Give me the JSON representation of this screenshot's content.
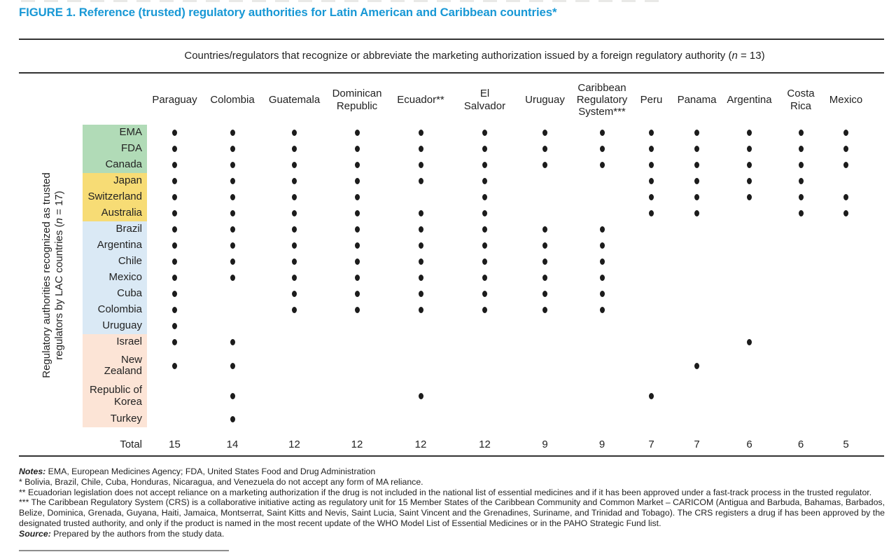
{
  "figure": {
    "title": "FIGURE 1. Reference (trusted) regulatory authorities for Latin American and Caribbean countries*",
    "title_color": "#1898d5"
  },
  "table": {
    "group_header": {
      "prefix": "Countries/regulators that recognize or abbreviate the marketing authorization issued by a foreign regulatory authority (",
      "n": "n",
      "suffix": " = 13)"
    },
    "row_axis": {
      "line1": "Regulatory authorities recognized as trusted",
      "line2_prefix": "regulators by LAC countries (",
      "n": "n",
      "line2_suffix": " = 17)"
    },
    "total_label": "Total"
  },
  "chart_data": {
    "type": "table",
    "title": "FIGURE 1. Reference (trusted) regulatory authorities for Latin American and Caribbean countries*",
    "column_axis_label": "Countries/regulators that recognize or abbreviate the marketing authorization issued by a foreign regulatory authority (n = 13)",
    "row_axis_label": "Regulatory authorities recognized as trusted regulators by LAC countries (n = 17)",
    "legend_position": "none",
    "grid": false,
    "dot_color": "#1c1c1c",
    "rule_color": "#333333",
    "groups": {
      "green": "#b1dbb7",
      "yellow": "#f7dc75",
      "blue": "#dae9f5",
      "peach": "#fce4d6"
    },
    "columns": [
      {
        "name": "Paraguay",
        "lines": [
          "Paraguay"
        ]
      },
      {
        "name": "Colombia",
        "lines": [
          "Colombia"
        ]
      },
      {
        "name": "Guatemala",
        "lines": [
          "Guatemala"
        ]
      },
      {
        "name": "Dominican Republic",
        "lines": [
          "Dominican",
          "Republic"
        ]
      },
      {
        "name": "Ecuador**",
        "lines": [
          "Ecuador**"
        ]
      },
      {
        "name": "El Salvador",
        "lines": [
          "El",
          "Salvador"
        ]
      },
      {
        "name": "Uruguay",
        "lines": [
          "Uruguay"
        ]
      },
      {
        "name": "Caribbean Regulatory System***",
        "lines": [
          "Caribbean",
          "Regulatory",
          "System***"
        ]
      },
      {
        "name": "Peru",
        "lines": [
          "Peru"
        ]
      },
      {
        "name": "Panama",
        "lines": [
          "Panama"
        ]
      },
      {
        "name": "Argentina",
        "lines": [
          "Argentina"
        ]
      },
      {
        "name": "Costa Rica",
        "lines": [
          "Costa",
          "Rica"
        ]
      },
      {
        "name": "Mexico",
        "lines": [
          "Mexico"
        ]
      }
    ],
    "rows": [
      {
        "label": "EMA",
        "lines": [
          "EMA"
        ],
        "group": "green",
        "dots": [
          1,
          1,
          1,
          1,
          1,
          1,
          1,
          1,
          1,
          1,
          1,
          1,
          1
        ]
      },
      {
        "label": "FDA",
        "lines": [
          "FDA"
        ],
        "group": "green",
        "dots": [
          1,
          1,
          1,
          1,
          1,
          1,
          1,
          1,
          1,
          1,
          1,
          1,
          1
        ]
      },
      {
        "label": "Canada",
        "lines": [
          "Canada"
        ],
        "group": "green",
        "dots": [
          1,
          1,
          1,
          1,
          1,
          1,
          1,
          1,
          1,
          1,
          1,
          1,
          1
        ]
      },
      {
        "label": "Japan",
        "lines": [
          "Japan"
        ],
        "group": "yellow",
        "dots": [
          1,
          1,
          1,
          1,
          1,
          1,
          0,
          0,
          1,
          1,
          1,
          1,
          0
        ]
      },
      {
        "label": "Switzerland",
        "lines": [
          "Switzerland"
        ],
        "group": "yellow",
        "dots": [
          1,
          1,
          1,
          1,
          0,
          1,
          0,
          0,
          1,
          1,
          1,
          1,
          1
        ]
      },
      {
        "label": "Australia",
        "lines": [
          "Australia"
        ],
        "group": "yellow",
        "dots": [
          1,
          1,
          1,
          1,
          1,
          1,
          0,
          0,
          1,
          1,
          0,
          1,
          1
        ]
      },
      {
        "label": "Brazil",
        "lines": [
          "Brazil"
        ],
        "group": "blue",
        "dots": [
          1,
          1,
          1,
          1,
          1,
          1,
          1,
          1,
          0,
          0,
          0,
          0,
          0
        ]
      },
      {
        "label": "Argentina",
        "lines": [
          "Argentina"
        ],
        "group": "blue",
        "dots": [
          1,
          1,
          1,
          1,
          1,
          1,
          1,
          1,
          0,
          0,
          0,
          0,
          0
        ]
      },
      {
        "label": "Chile",
        "lines": [
          "Chile"
        ],
        "group": "blue",
        "dots": [
          1,
          1,
          1,
          1,
          1,
          1,
          1,
          1,
          0,
          0,
          0,
          0,
          0
        ]
      },
      {
        "label": "Mexico",
        "lines": [
          "Mexico"
        ],
        "group": "blue",
        "dots": [
          1,
          1,
          1,
          1,
          1,
          1,
          1,
          1,
          0,
          0,
          0,
          0,
          0
        ]
      },
      {
        "label": "Cuba",
        "lines": [
          "Cuba"
        ],
        "group": "blue",
        "dots": [
          1,
          0,
          1,
          1,
          1,
          1,
          1,
          1,
          0,
          0,
          0,
          0,
          0
        ]
      },
      {
        "label": "Colombia",
        "lines": [
          "Colombia"
        ],
        "group": "blue",
        "dots": [
          1,
          0,
          1,
          1,
          1,
          1,
          1,
          1,
          0,
          0,
          0,
          0,
          0
        ]
      },
      {
        "label": "Uruguay",
        "lines": [
          "Uruguay"
        ],
        "group": "blue",
        "dots": [
          1,
          0,
          0,
          0,
          0,
          0,
          0,
          0,
          0,
          0,
          0,
          0,
          0
        ]
      },
      {
        "label": "Israel",
        "lines": [
          "Israel"
        ],
        "group": "peach",
        "dots": [
          1,
          1,
          0,
          0,
          0,
          0,
          0,
          0,
          0,
          0,
          1,
          0,
          0
        ]
      },
      {
        "label": "New Zealand",
        "lines": [
          "New",
          "Zealand"
        ],
        "group": "peach",
        "dots": [
          1,
          1,
          0,
          0,
          0,
          0,
          0,
          0,
          0,
          1,
          0,
          0,
          0
        ]
      },
      {
        "label": "Republic of Korea",
        "lines": [
          "Republic of",
          "Korea"
        ],
        "group": "peach",
        "dots": [
          0,
          1,
          0,
          0,
          1,
          0,
          0,
          0,
          1,
          0,
          0,
          0,
          0
        ]
      },
      {
        "label": "Turkey",
        "lines": [
          "Turkey"
        ],
        "group": "peach",
        "dots": [
          0,
          1,
          0,
          0,
          0,
          0,
          0,
          0,
          0,
          0,
          0,
          0,
          0
        ]
      }
    ],
    "totals": [
      15,
      14,
      12,
      12,
      12,
      12,
      9,
      9,
      7,
      7,
      6,
      6,
      5
    ]
  },
  "notes": {
    "notes_label": "Notes:",
    "notes_body": " EMA, European Medicines Agency; FDA, United States Food and Drug Administration",
    "note_1": "* Bolivia, Brazil, Chile, Cuba, Honduras, Nicaragua, and Venezuela do not accept any form of MA reliance.",
    "note_2": "** Ecuadorian legislation does not accept reliance on a marketing authorization if the drug is not included in the national list of essential medicines and if it has been approved under a fast-track process in the trusted regulator.",
    "note_3": "*** The Caribbean Regulatory System (CRS) is a collaborative initiative acting as regulatory unit for 15 Member States of the Caribbean Community and Common Market – CARICOM (Antigua and Barbuda, Bahamas, Barbados, Belize, Dominica, Grenada, Guyana, Haiti, Jamaica, Montserrat, Saint Kitts and Nevis, Saint Lucia, Saint Vincent and the Grenadines, Suriname, and Trinidad and Tobago). The CRS registers a drug if has been approved by the designated trusted authority, and only if the product is named in the most recent update of the WHO Model List of Essential Medicines or in the PAHO Strategic Fund list.",
    "source_label": "Source:",
    "source_body": " Prepared by the authors from the study data."
  }
}
